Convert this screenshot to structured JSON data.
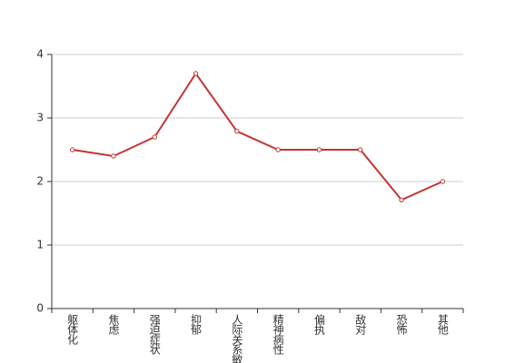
{
  "chart_data": {
    "type": "line",
    "categories": [
      "躯体化",
      "焦虑",
      "强迫症状",
      "抑郁",
      "人际关系敏感",
      "精神病性",
      "偏执",
      "敌对",
      "恐怖",
      "其他"
    ],
    "series": [
      {
        "color": "#c23531",
        "values": [
          2.5,
          2.4,
          2.7,
          3.7,
          2.79,
          2.5,
          2.5,
          2.5,
          1.71,
          2.0
        ]
      }
    ],
    "ylim": [
      0,
      4
    ],
    "yticks": [
      0,
      1,
      2,
      3,
      4
    ],
    "grid": true
  }
}
